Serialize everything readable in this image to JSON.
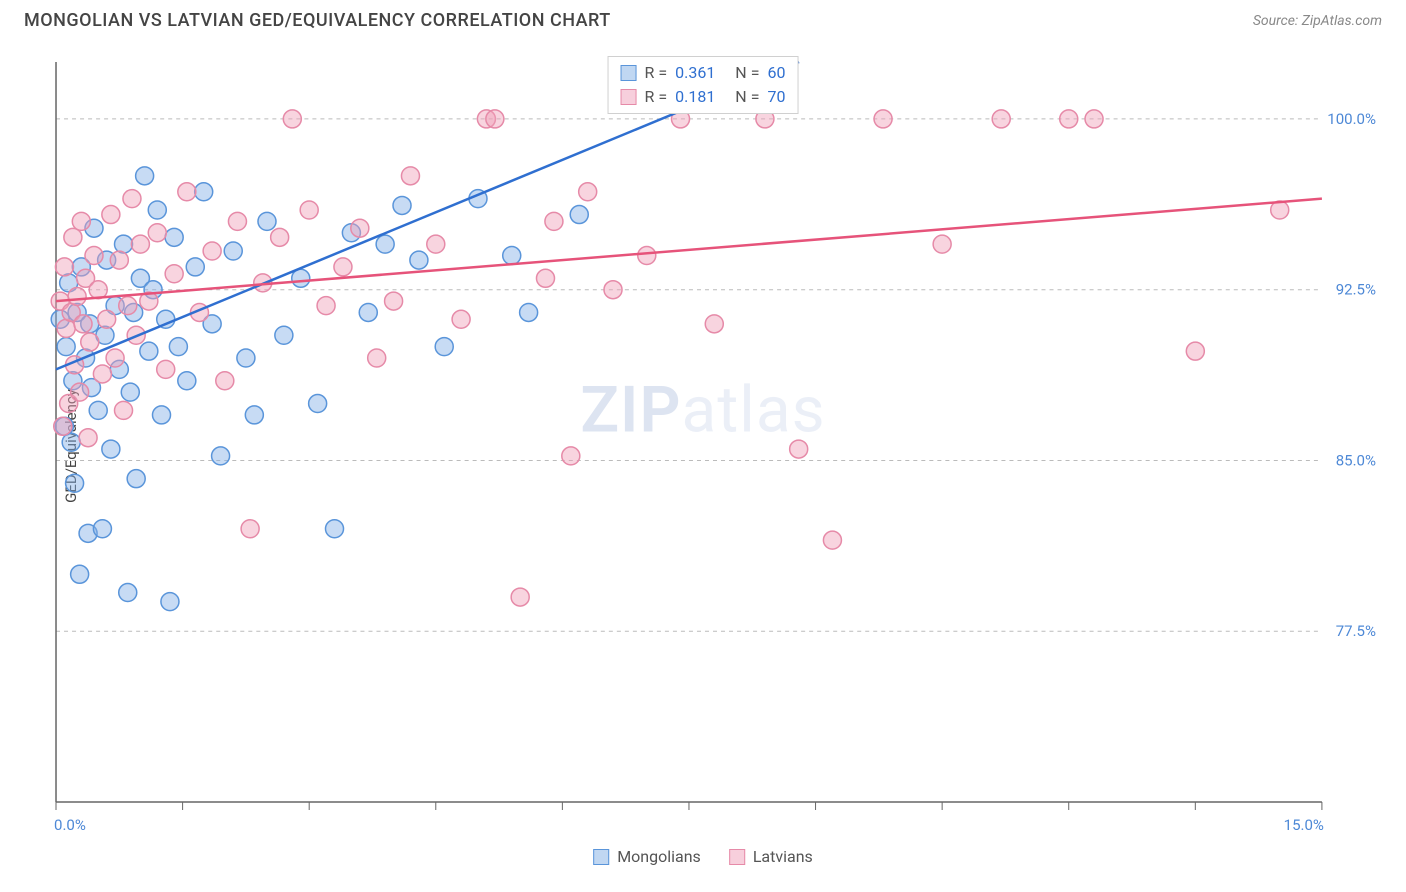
{
  "header": {
    "title": "MONGOLIAN VS LATVIAN GED/EQUIVALENCY CORRELATION CHART",
    "source": "Source: ZipAtlas.com"
  },
  "chart": {
    "type": "scatter",
    "ylabel": "GED/Equivalency",
    "xlim": [
      0.0,
      15.0
    ],
    "ylim": [
      70.0,
      102.5
    ],
    "xtick_positions": [
      0.0,
      1.5,
      3.0,
      4.5,
      6.0,
      7.5,
      9.0,
      10.5,
      12.0,
      13.5,
      15.0
    ],
    "xtick_labels": {
      "first": "0.0%",
      "last": "15.0%"
    },
    "ygrid": [
      77.5,
      85.0,
      92.5,
      100.0
    ],
    "ygrid_labels": [
      "77.5%",
      "85.0%",
      "92.5%",
      "100.0%"
    ],
    "marker_radius": 9,
    "background_color": "#ffffff",
    "grid_color": "#bbbbbb",
    "axis_color": "#666666",
    "series": [
      {
        "name": "Mongolians",
        "fill": "rgba(130,175,230,0.45)",
        "stroke": "#5a95da",
        "trend_color": "#2f6fd0",
        "trend_y_at_x0": 89.0,
        "trend_y_at_xmax": 112.0,
        "R": "0.361",
        "N": "60",
        "points": [
          [
            0.05,
            91.2
          ],
          [
            0.1,
            86.5
          ],
          [
            0.12,
            90.0
          ],
          [
            0.15,
            92.8
          ],
          [
            0.18,
            85.8
          ],
          [
            0.2,
            88.5
          ],
          [
            0.22,
            84.0
          ],
          [
            0.25,
            91.5
          ],
          [
            0.28,
            80.0
          ],
          [
            0.3,
            93.5
          ],
          [
            0.35,
            89.5
          ],
          [
            0.38,
            81.8
          ],
          [
            0.4,
            91.0
          ],
          [
            0.42,
            88.2
          ],
          [
            0.45,
            95.2
          ],
          [
            0.5,
            87.2
          ],
          [
            0.55,
            82.0
          ],
          [
            0.58,
            90.5
          ],
          [
            0.6,
            93.8
          ],
          [
            0.65,
            85.5
          ],
          [
            0.7,
            91.8
          ],
          [
            0.75,
            89.0
          ],
          [
            0.8,
            94.5
          ],
          [
            0.85,
            79.2
          ],
          [
            0.88,
            88.0
          ],
          [
            0.92,
            91.5
          ],
          [
            0.95,
            84.2
          ],
          [
            1.0,
            93.0
          ],
          [
            1.05,
            97.5
          ],
          [
            1.1,
            89.8
          ],
          [
            1.15,
            92.5
          ],
          [
            1.2,
            96.0
          ],
          [
            1.25,
            87.0
          ],
          [
            1.3,
            91.2
          ],
          [
            1.35,
            78.8
          ],
          [
            1.4,
            94.8
          ],
          [
            1.45,
            90.0
          ],
          [
            1.55,
            88.5
          ],
          [
            1.65,
            93.5
          ],
          [
            1.75,
            96.8
          ],
          [
            1.85,
            91.0
          ],
          [
            1.95,
            85.2
          ],
          [
            2.1,
            94.2
          ],
          [
            2.25,
            89.5
          ],
          [
            2.35,
            87.0
          ],
          [
            2.5,
            95.5
          ],
          [
            2.7,
            90.5
          ],
          [
            2.9,
            93.0
          ],
          [
            3.1,
            87.5
          ],
          [
            3.3,
            82.0
          ],
          [
            3.5,
            95.0
          ],
          [
            3.7,
            91.5
          ],
          [
            3.9,
            94.5
          ],
          [
            4.1,
            96.2
          ],
          [
            4.3,
            93.8
          ],
          [
            4.6,
            90.0
          ],
          [
            5.0,
            96.5
          ],
          [
            5.4,
            94.0
          ],
          [
            5.6,
            91.5
          ],
          [
            6.2,
            95.8
          ]
        ]
      },
      {
        "name": "Latvians",
        "fill": "rgba(240,160,185,0.45)",
        "stroke": "#e68aa8",
        "trend_color": "#e6537a",
        "trend_y_at_x0": 92.0,
        "trend_y_at_xmax": 96.5,
        "R": "0.181",
        "N": "70",
        "points": [
          [
            0.05,
            92.0
          ],
          [
            0.08,
            86.5
          ],
          [
            0.1,
            93.5
          ],
          [
            0.12,
            90.8
          ],
          [
            0.15,
            87.5
          ],
          [
            0.18,
            91.5
          ],
          [
            0.2,
            94.8
          ],
          [
            0.22,
            89.2
          ],
          [
            0.25,
            92.2
          ],
          [
            0.28,
            88.0
          ],
          [
            0.3,
            95.5
          ],
          [
            0.32,
            91.0
          ],
          [
            0.35,
            93.0
          ],
          [
            0.38,
            86.0
          ],
          [
            0.4,
            90.2
          ],
          [
            0.45,
            94.0
          ],
          [
            0.5,
            92.5
          ],
          [
            0.55,
            88.8
          ],
          [
            0.6,
            91.2
          ],
          [
            0.65,
            95.8
          ],
          [
            0.7,
            89.5
          ],
          [
            0.75,
            93.8
          ],
          [
            0.8,
            87.2
          ],
          [
            0.85,
            91.8
          ],
          [
            0.9,
            96.5
          ],
          [
            0.95,
            90.5
          ],
          [
            1.0,
            94.5
          ],
          [
            1.1,
            92.0
          ],
          [
            1.2,
            95.0
          ],
          [
            1.3,
            89.0
          ],
          [
            1.4,
            93.2
          ],
          [
            1.55,
            96.8
          ],
          [
            1.7,
            91.5
          ],
          [
            1.85,
            94.2
          ],
          [
            2.0,
            88.5
          ],
          [
            2.15,
            95.5
          ],
          [
            2.3,
            82.0
          ],
          [
            2.45,
            92.8
          ],
          [
            2.65,
            94.8
          ],
          [
            2.8,
            100.0
          ],
          [
            3.0,
            96.0
          ],
          [
            3.2,
            91.8
          ],
          [
            3.4,
            93.5
          ],
          [
            3.6,
            95.2
          ],
          [
            3.8,
            89.5
          ],
          [
            4.0,
            92.0
          ],
          [
            4.2,
            97.5
          ],
          [
            4.5,
            94.5
          ],
          [
            4.8,
            91.2
          ],
          [
            5.1,
            100.0
          ],
          [
            5.2,
            100.0
          ],
          [
            5.5,
            79.0
          ],
          [
            5.8,
            93.0
          ],
          [
            5.9,
            95.5
          ],
          [
            6.1,
            85.2
          ],
          [
            6.3,
            96.8
          ],
          [
            6.6,
            92.5
          ],
          [
            7.0,
            94.0
          ],
          [
            7.4,
            100.0
          ],
          [
            7.8,
            91.0
          ],
          [
            8.4,
            100.0
          ],
          [
            8.8,
            85.5
          ],
          [
            9.2,
            81.5
          ],
          [
            9.8,
            100.0
          ],
          [
            10.5,
            94.5
          ],
          [
            11.2,
            100.0
          ],
          [
            12.0,
            100.0
          ],
          [
            12.3,
            100.0
          ],
          [
            13.5,
            89.8
          ],
          [
            14.5,
            96.0
          ]
        ]
      }
    ]
  },
  "stats_box": {
    "rows": [
      {
        "swatch": "blue",
        "r_label": "R =",
        "r_val": "0.361",
        "n_label": "N =",
        "n_val": "60"
      },
      {
        "swatch": "pink",
        "r_label": "R =",
        "r_val": "0.181",
        "n_label": "N =",
        "n_val": "70"
      }
    ]
  },
  "legend": {
    "items": [
      {
        "swatch": "blue",
        "label": "Mongolians"
      },
      {
        "swatch": "pink",
        "label": "Latvians"
      }
    ]
  },
  "watermark": {
    "bold": "ZIP",
    "light": "atlas"
  }
}
